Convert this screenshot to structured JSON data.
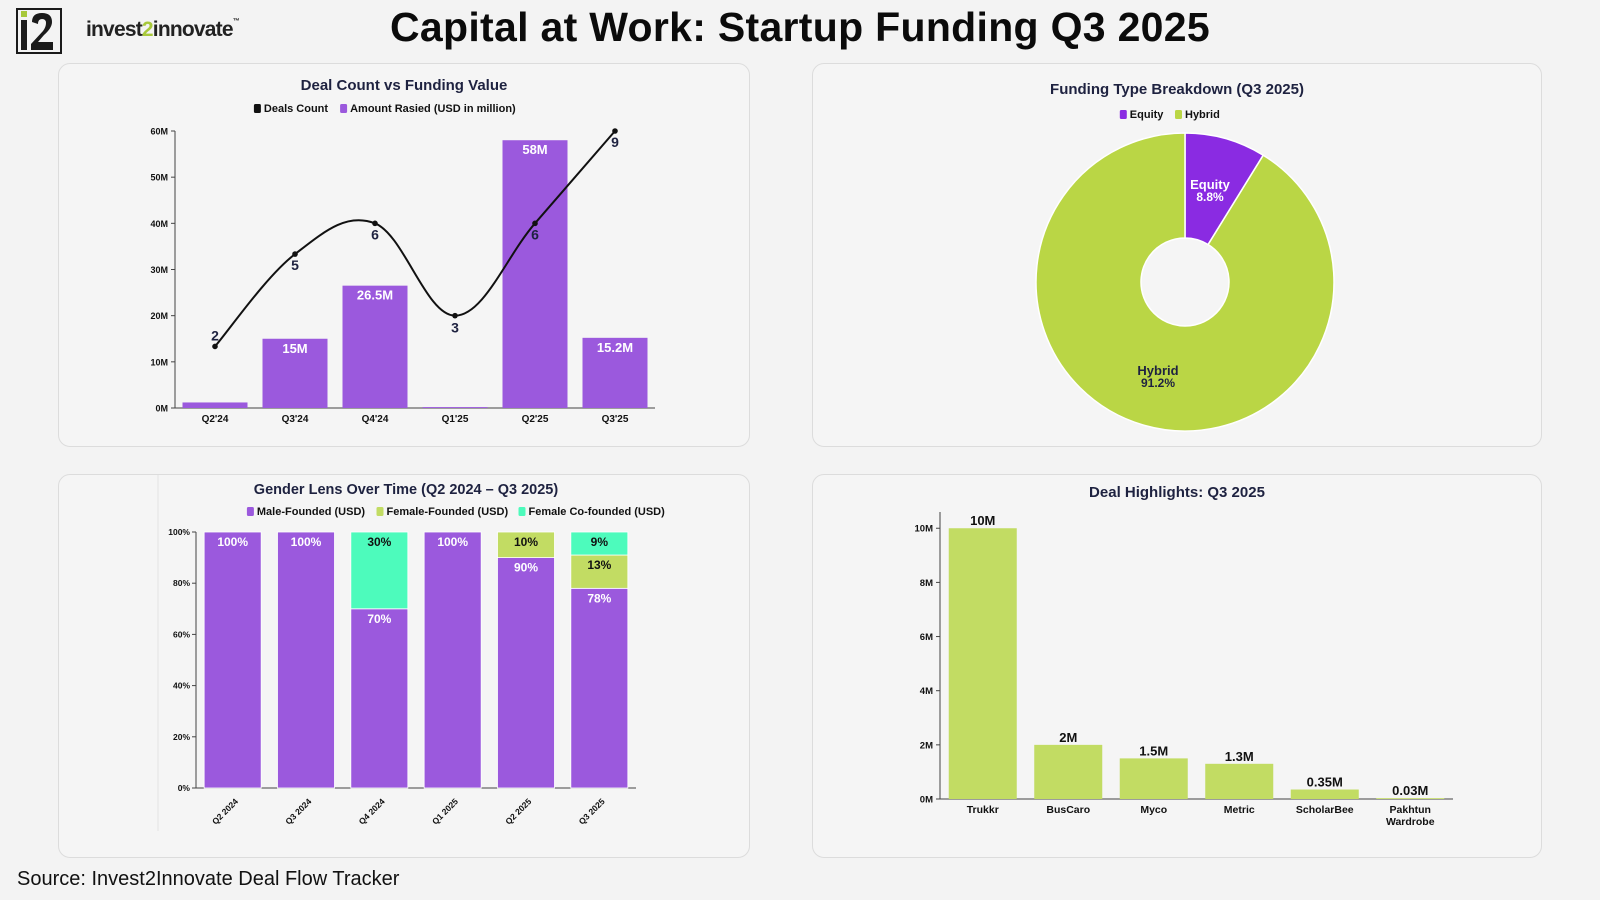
{
  "header": {
    "logo_text": "invest2innovate",
    "logo_mark": "i2",
    "title": "Capital at Work: Startup Funding Q3 2025"
  },
  "source": "Source: Invest2Innovate Deal Flow Tracker",
  "colors": {
    "purple": "#9b59dd",
    "purple_dark": "#8a2be2",
    "lime": "#c2dc63",
    "lime_pie": "#bad645",
    "teal": "#4dfbbc"
  },
  "chart_data": [
    {
      "type": "bar",
      "title": "Deal Count vs Funding Value",
      "legend": [
        "Deals Count",
        "Amount Rasied (USD in million)"
      ],
      "legend_position": "top",
      "categories": [
        "Q2'24",
        "Q3'24",
        "Q4'24",
        "Q1'25",
        "Q2'25",
        "Q3'25"
      ],
      "series": [
        {
          "name": "Amount Rasied (USD in million)",
          "type": "bar",
          "values": [
            1.2,
            15,
            26.5,
            0.2,
            58,
            15.2
          ],
          "labels": [
            "",
            "15M",
            "26.5M",
            "",
            "58M",
            "15.2M"
          ]
        },
        {
          "name": "Deals Count",
          "type": "line",
          "values": [
            2,
            5,
            6,
            3,
            6,
            9
          ],
          "labels": [
            "2",
            "5",
            "6",
            "3",
            "6",
            "9"
          ]
        }
      ],
      "y_ticks": [
        "0M",
        "10M",
        "20M",
        "30M",
        "40M",
        "50M",
        "60M"
      ],
      "ylim": [
        0,
        60
      ]
    },
    {
      "type": "pie",
      "title": "Funding Type Breakdown (Q3 2025)",
      "legend": [
        "Equity",
        "Hybrid"
      ],
      "legend_position": "top",
      "slices": [
        {
          "name": "Equity",
          "value": 8.8,
          "label": "8.8%"
        },
        {
          "name": "Hybrid",
          "value": 91.2,
          "label": "91.2%"
        }
      ]
    },
    {
      "type": "bar",
      "stacked": true,
      "title": "Gender Lens Over Time (Q2 2024 – Q3 2025)",
      "legend": [
        "Male-Founded (USD)",
        "Female-Founded (USD)",
        "Female Co-founded (USD)"
      ],
      "legend_position": "top",
      "categories": [
        "Q2 2024",
        "Q3 2024",
        "Q4 2024",
        "Q1 2025",
        "Q2 2025",
        "Q3 2025"
      ],
      "series": [
        {
          "name": "Male-Founded (USD)",
          "values": [
            100,
            100,
            70,
            100,
            90,
            78
          ],
          "labels": [
            "100%",
            "100%",
            "70%",
            "100%",
            "90%",
            "78%"
          ]
        },
        {
          "name": "Female-Founded (USD)",
          "values": [
            0,
            0,
            0,
            0,
            10,
            13
          ],
          "labels": [
            "",
            "",
            "",
            "",
            "10%",
            "13%"
          ]
        },
        {
          "name": "Female Co-founded (USD)",
          "values": [
            0,
            0,
            30,
            0,
            0,
            9
          ],
          "labels": [
            "",
            "",
            "30%",
            "",
            "",
            "9%"
          ]
        }
      ],
      "y_ticks": [
        "0%",
        "20%",
        "40%",
        "60%",
        "80%",
        "100%"
      ],
      "ylim": [
        0,
        100
      ]
    },
    {
      "type": "bar",
      "title": "Deal Highlights: Q3 2025",
      "categories": [
        "Trukkr",
        "BusCaro",
        "Myco",
        "Metric",
        "ScholarBee",
        "Pakhtun Wardrobe"
      ],
      "values": [
        10,
        2,
        1.5,
        1.3,
        0.35,
        0.03
      ],
      "labels": [
        "10M",
        "2M",
        "1.5M",
        "1.3M",
        "0.35M",
        "0.03M"
      ],
      "y_ticks": [
        "0M",
        "2M",
        "4M",
        "6M",
        "8M",
        "10M"
      ],
      "ylim": [
        0,
        10.6
      ]
    }
  ]
}
